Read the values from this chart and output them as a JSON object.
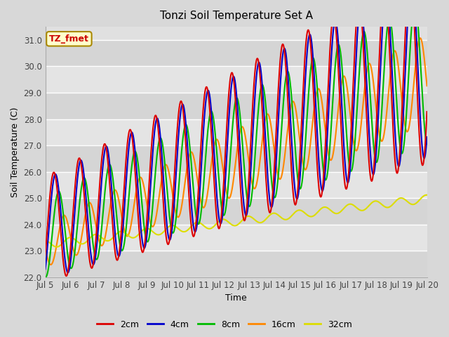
{
  "title": "Tonzi Soil Temperature Set A",
  "xlabel": "Time",
  "ylabel": "Soil Temperature (C)",
  "ylim": [
    22.0,
    31.5
  ],
  "xlim_days": [
    0,
    15
  ],
  "x_tick_labels": [
    "Jul 5",
    "Jul 6",
    "Jul 7",
    "Jul 8",
    "Jul 9",
    "Jul 10",
    "Jul 11",
    "Jul 12",
    "Jul 13",
    "Jul 14",
    "Jul 15",
    "Jul 16",
    "Jul 17",
    "Jul 18",
    "Jul 19",
    "Jul 20"
  ],
  "x_tick_positions": [
    0,
    1,
    2,
    3,
    4,
    5,
    6,
    7,
    8,
    9,
    10,
    11,
    12,
    13,
    14,
    15
  ],
  "legend_entries": [
    "2cm",
    "4cm",
    "8cm",
    "16cm",
    "32cm"
  ],
  "line_colors": [
    "#dd0000",
    "#0000cc",
    "#00bb00",
    "#ff8800",
    "#dddd00"
  ],
  "annotation_text": "TZ_fmet",
  "annotation_color": "#cc0000",
  "annotation_bg": "#ffffcc",
  "bg_color": "#d8d8d8",
  "plot_bg_color": "#e0e0e0",
  "grid_color": "#ffffff",
  "ytick_labels": [
    "22.0",
    "23.0",
    "24.0",
    "25.0",
    "26.0",
    "27.0",
    "28.0",
    "29.0",
    "30.0",
    "31.0"
  ],
  "ytick_values": [
    22.0,
    23.0,
    24.0,
    25.0,
    26.0,
    27.0,
    28.0,
    29.0,
    30.0,
    31.0
  ]
}
